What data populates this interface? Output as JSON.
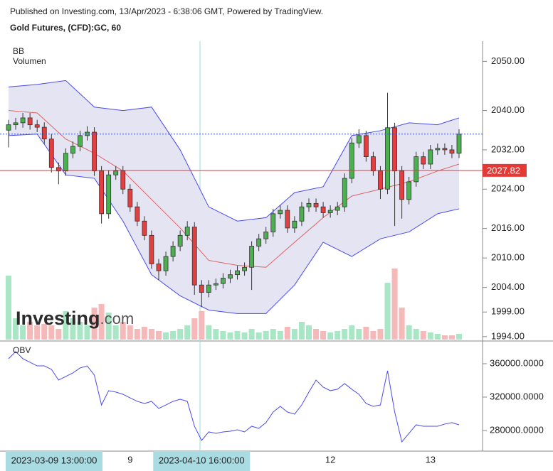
{
  "header": {
    "publisher": "Published on Investing.com, 13/Apr/2023 - 6:38:06 GMT, Powered by TradingView.",
    "symbol": "Gold Futures, (CFD):GC, 60"
  },
  "chart_data": {
    "type": "candlestick",
    "categories": [
      "2023-03-09 13:00:00",
      null,
      null,
      null,
      null,
      null,
      null,
      null,
      null,
      null,
      null,
      null,
      null,
      null,
      null,
      null,
      null,
      "9",
      null,
      null,
      null,
      null,
      null,
      null,
      null,
      null,
      null,
      "2023-04-10 16:00:00",
      null,
      null,
      null,
      null,
      null,
      null,
      null,
      null,
      null,
      null,
      null,
      null,
      null,
      null,
      null,
      null,
      null,
      "12",
      null,
      null,
      null,
      null,
      null,
      null,
      null,
      null,
      null,
      null,
      null,
      null,
      null,
      "13",
      null,
      null,
      null,
      null
    ],
    "open": [
      2036.0,
      2037.1,
      2037.5,
      2038.5,
      2037.1,
      2036.6,
      2034.2,
      2028.4,
      2027.7,
      2031.3,
      2032.7,
      2034.9,
      2035.6,
      2027.7,
      2019.0,
      2026.9,
      2027.7,
      2024.0,
      2020.4,
      2017.5,
      2014.6,
      2008.8,
      2007.4,
      2010.3,
      2012.4,
      2014.6,
      2016.3,
      2004.5,
      2003.0,
      2004.5,
      2004.8,
      2005.9,
      2006.6,
      2007.4,
      2008.1,
      2012.4,
      2013.9,
      2015.3,
      2019.0,
      2019.7,
      2016.1,
      2017.5,
      2020.4,
      2021.1,
      2020.4,
      2019.2,
      2019.7,
      2020.4,
      2026.2,
      2033.4,
      2034.9,
      2030.6,
      2027.7,
      2024.0,
      2036.5,
      2027.7,
      2021.9,
      2025.5,
      2030.6,
      2029.1,
      2032.0,
      2032.3,
      2032.0,
      2031.3
    ],
    "high": [
      2038.1,
      2038.5,
      2039.5,
      2039.5,
      2038.1,
      2037.6,
      2035.2,
      2029.4,
      2032.3,
      2033.7,
      2035.9,
      2036.8,
      2036.6,
      2028.7,
      2027.9,
      2028.7,
      2028.7,
      2025.0,
      2021.4,
      2018.5,
      2015.6,
      2009.8,
      2011.3,
      2013.4,
      2015.6,
      2017.5,
      2017.3,
      2005.5,
      2005.5,
      2005.8,
      2006.9,
      2007.6,
      2008.4,
      2009.1,
      2013.4,
      2014.9,
      2016.3,
      2020.0,
      2020.7,
      2020.7,
      2018.5,
      2021.4,
      2022.1,
      2022.1,
      2021.4,
      2020.7,
      2021.4,
      2027.2,
      2034.4,
      2036.2,
      2035.9,
      2031.6,
      2028.7,
      2043.6,
      2037.5,
      2028.7,
      2026.5,
      2031.6,
      2031.6,
      2033.0,
      2033.3,
      2033.3,
      2033.0,
      2036.2
    ],
    "low": [
      2032.5,
      2036.1,
      2036.5,
      2036.1,
      2035.6,
      2033.2,
      2027.4,
      2025.0,
      2026.7,
      2030.3,
      2031.7,
      2033.9,
      2026.7,
      2017.0,
      2018.0,
      2025.9,
      2023.0,
      2019.4,
      2016.5,
      2013.6,
      2007.8,
      2005.5,
      2006.4,
      2009.3,
      2011.4,
      2013.6,
      2002.5,
      2000.0,
      2002.0,
      2003.5,
      2003.8,
      2004.9,
      2005.6,
      2006.4,
      2003.5,
      2011.4,
      2012.9,
      2014.3,
      2018.0,
      2015.1,
      2015.1,
      2016.5,
      2019.4,
      2019.4,
      2018.2,
      2018.2,
      2018.7,
      2019.4,
      2025.2,
      2032.4,
      2029.6,
      2026.7,
      2022.0,
      2023.0,
      2016.5,
      2018.0,
      2020.9,
      2024.5,
      2028.1,
      2028.1,
      2031.0,
      2031.0,
      2030.3,
      2030.3
    ],
    "close": [
      2037.1,
      2037.5,
      2038.5,
      2037.1,
      2036.6,
      2034.2,
      2028.4,
      2027.7,
      2031.3,
      2032.7,
      2034.9,
      2035.6,
      2027.7,
      2019.0,
      2026.9,
      2027.7,
      2024.0,
      2020.4,
      2017.5,
      2014.6,
      2008.8,
      2007.4,
      2010.3,
      2012.4,
      2014.6,
      2016.3,
      2004.5,
      2003.0,
      2004.5,
      2004.8,
      2005.9,
      2006.6,
      2007.4,
      2008.1,
      2012.4,
      2013.9,
      2015.3,
      2019.0,
      2019.7,
      2016.1,
      2017.5,
      2020.4,
      2021.1,
      2020.4,
      2019.2,
      2019.7,
      2020.4,
      2026.2,
      2033.4,
      2034.9,
      2030.6,
      2027.7,
      2024.0,
      2036.5,
      2027.7,
      2021.9,
      2025.5,
      2030.6,
      2029.1,
      2032.0,
      2032.3,
      2032.0,
      2031.3,
      2035.2
    ],
    "ylim": [
      1993.4,
      2054.1
    ],
    "yticks": [
      {
        "value": 1994,
        "label": "1994.00"
      },
      {
        "value": 1999,
        "label": "1999.00"
      },
      {
        "value": 2004,
        "label": "2004.00"
      },
      {
        "value": 2010,
        "label": "2010.00"
      },
      {
        "value": 2016,
        "label": "2016.00"
      },
      {
        "value": 2024,
        "label": "2024.00"
      },
      {
        "value": 2032,
        "label": "2032.00"
      },
      {
        "value": 2040,
        "label": "2040.00"
      },
      {
        "value": 2050,
        "label": "2050.00"
      }
    ],
    "up_color": "#4caf50",
    "down_color": "#e04040",
    "last_price": 2027.82,
    "last_price_color": "#e53935",
    "bands": {
      "name": "BB",
      "color": "#4a4af0",
      "middle_color": "#e06060",
      "fill": "#e4e4f2",
      "x": [
        0,
        4,
        8,
        12,
        16,
        20,
        24,
        28,
        32,
        36,
        40,
        44,
        48,
        52,
        56,
        60,
        63
      ],
      "upper": [
        2044.8,
        2045.3,
        2046.1,
        2040.7,
        2040.0,
        2040.7,
        2032.0,
        2020.4,
        2017.5,
        2018.2,
        2023.3,
        2024.5,
        2034.9,
        2035.9,
        2037.5,
        2037.1,
        2038.5
      ],
      "middle": [
        2040.0,
        2039.5,
        2034.2,
        2031.3,
        2027.7,
        2021.9,
        2016.1,
        2009.5,
        2008.5,
        2008.1,
        2013.2,
        2018.2,
        2022.6,
        2024.0,
        2025.5,
        2027.7,
        2029.1
      ],
      "lower": [
        2034.9,
        2035.2,
        2026.9,
        2026.2,
        2017.5,
        2006.6,
        2002.3,
        1999.4,
        1998.7,
        1998.7,
        2004.5,
        2013.2,
        2010.3,
        2013.9,
        2015.3,
        2019.0,
        2020.0
      ]
    },
    "volume": {
      "name": "Volumen",
      "up_color": "#a8e6c6",
      "down_color": "#f6b9b9",
      "ylim": [
        0,
        420
      ],
      "values": [
        90,
        30,
        20,
        25,
        20,
        22,
        20,
        15,
        40,
        30,
        25,
        20,
        45,
        50,
        38,
        20,
        25,
        20,
        15,
        18,
        15,
        12,
        10,
        12,
        15,
        20,
        30,
        40,
        20,
        15,
        12,
        10,
        12,
        10,
        15,
        10,
        12,
        15,
        12,
        18,
        15,
        25,
        20,
        15,
        12,
        10,
        12,
        15,
        20,
        15,
        18,
        12,
        15,
        80,
        100,
        45,
        20,
        15,
        12,
        10,
        8,
        6,
        6,
        8
      ]
    },
    "obv": {
      "name": "OBV",
      "color": "#4a4af0",
      "ylim": [
        255300,
        383800
      ],
      "yticks": [
        {
          "value": 280000,
          "label": "280000.0000"
        },
        {
          "value": 320000,
          "label": "320000.0000"
        },
        {
          "value": 360000,
          "label": "360000.0000"
        }
      ],
      "values": [
        366000,
        374500,
        366000,
        361700,
        357400,
        357400,
        353200,
        340400,
        344700,
        349000,
        354900,
        357400,
        346400,
        310600,
        327700,
        326000,
        323400,
        319100,
        314900,
        312300,
        314900,
        306400,
        310600,
        314900,
        317400,
        314900,
        285100,
        268100,
        278300,
        276600,
        278300,
        279100,
        280800,
        278300,
        285100,
        282600,
        289400,
        302100,
        308900,
        302100,
        299600,
        310600,
        326000,
        340400,
        331900,
        327700,
        329400,
        336200,
        329400,
        323400,
        312300,
        308900,
        310600,
        351500,
        302100,
        266400,
        276600,
        286800,
        285100,
        285100,
        285100,
        287700,
        289400,
        286800
      ]
    },
    "watermark": [
      "Investing",
      ".com"
    ]
  }
}
